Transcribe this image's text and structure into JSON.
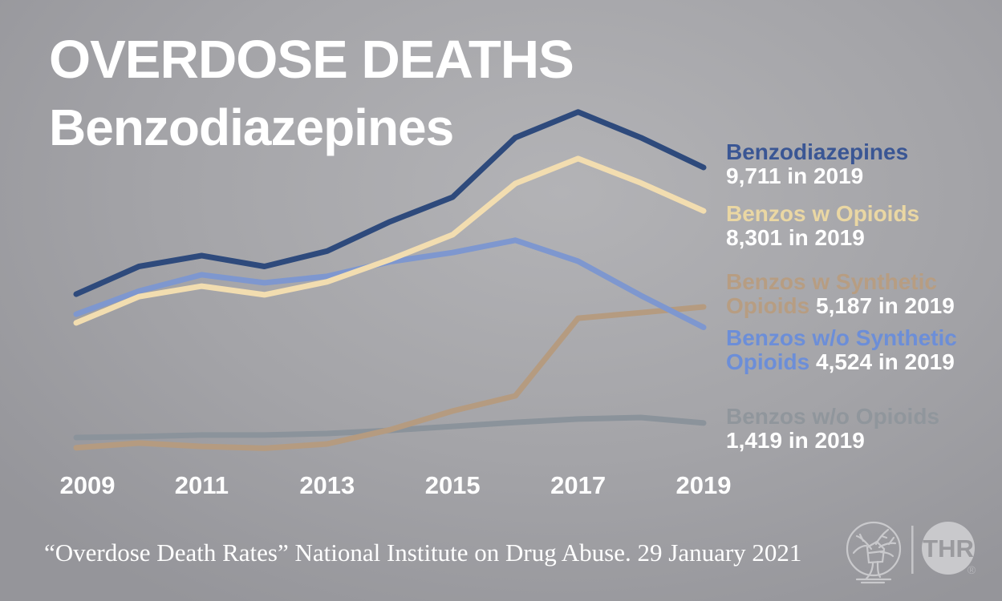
{
  "chart_data": {
    "type": "line",
    "title": "OVERDOSE DEATHS",
    "subtitle": "Benzodiazepines",
    "x": [
      2009,
      2010,
      2011,
      2012,
      2013,
      2014,
      2015,
      2016,
      2017,
      2018,
      2019
    ],
    "x_tick_labels": [
      "2009",
      "2011",
      "2013",
      "2015",
      "2017",
      "2019"
    ],
    "ylim": [
      0,
      12500
    ],
    "grid": false,
    "legend_position": "right",
    "series": [
      {
        "name": "Benzodiazepines",
        "color": "#2e4a7c",
        "values": [
          5600,
          6500,
          6850,
          6500,
          7000,
          7950,
          8750,
          10680,
          11510,
          10680,
          9711
        ],
        "final_value_label": "9,711 in 2019"
      },
      {
        "name": "Benzos w Opioids",
        "color": "#f2ddb0",
        "values": [
          4670,
          5520,
          5860,
          5580,
          6000,
          6720,
          7530,
          9190,
          10000,
          9210,
          8301
        ],
        "final_value_label": "8,301 in 2019"
      },
      {
        "name": "Benzos w Synthetic Opioids",
        "color": "#b59b80",
        "values": [
          620,
          770,
          660,
          600,
          740,
          1200,
          1810,
          2300,
          4820,
          5000,
          5187
        ],
        "final_value_label": "5,187 in 2019"
      },
      {
        "name": "Benzos w/o Synthetic Opioids",
        "color": "#7e97cf",
        "values": [
          4950,
          5700,
          6230,
          5970,
          6180,
          6650,
          6950,
          7350,
          6670,
          5560,
          4524
        ],
        "final_value_label": "4,524 in 2019"
      },
      {
        "name": "Benzos w/o Opioids",
        "color": "#8b939b",
        "values": [
          950,
          980,
          1030,
          1030,
          1080,
          1180,
          1310,
          1440,
          1550,
          1600,
          1419
        ],
        "final_value_label": "1,419 in 2019"
      }
    ]
  },
  "legend": {
    "entries": [
      {
        "lines": [
          [
            {
              "text": "Benzodiazepines",
              "color": "#3a5694"
            }
          ],
          [
            {
              "text": "9,711 in 2019",
              "color": "#ffffff"
            }
          ]
        ]
      },
      {
        "lines": [
          [
            {
              "text": "Benzos w Opioids",
              "color": "#ead7a3"
            }
          ],
          [
            {
              "text": "8,301 in 2019",
              "color": "#ffffff"
            }
          ]
        ]
      },
      {
        "lines": [
          [
            {
              "text": "Benzos w Synthetic",
              "color": "#b79d82"
            }
          ],
          [
            {
              "text": "Opioids ",
              "color": "#b79d82"
            },
            {
              "text": "5,187 in 2019",
              "color": "#ffffff"
            }
          ]
        ]
      },
      {
        "lines": [
          [
            {
              "text": "Benzos w/o Synthetic",
              "color": "#6c8ed8"
            }
          ],
          [
            {
              "text": "Opioids ",
              "color": "#6c8ed8"
            },
            {
              "text": "4,524 in 2019",
              "color": "#ffffff"
            }
          ]
        ]
      },
      {
        "lines": [
          [
            {
              "text": "Benzos w/o Opioids",
              "color": "#90969c"
            }
          ],
          [
            {
              "text": "1,419 in 2019",
              "color": "#ffffff"
            }
          ]
        ]
      }
    ]
  },
  "footer": {
    "source_text": "“Overdose Death Rates” National Institute on Drug Abuse. 29 January 2021"
  },
  "logos": {
    "thr_text": "THR",
    "registered_mark": "®"
  },
  "colors": {
    "background_gray": "#a4a4a8",
    "title_white": "#ffffff",
    "line_dark_blue": "#2e4a7c",
    "line_cream": "#f2ddb0",
    "line_tan": "#b59b80",
    "line_light_blue": "#7e97cf",
    "line_gray": "#8b939b"
  }
}
